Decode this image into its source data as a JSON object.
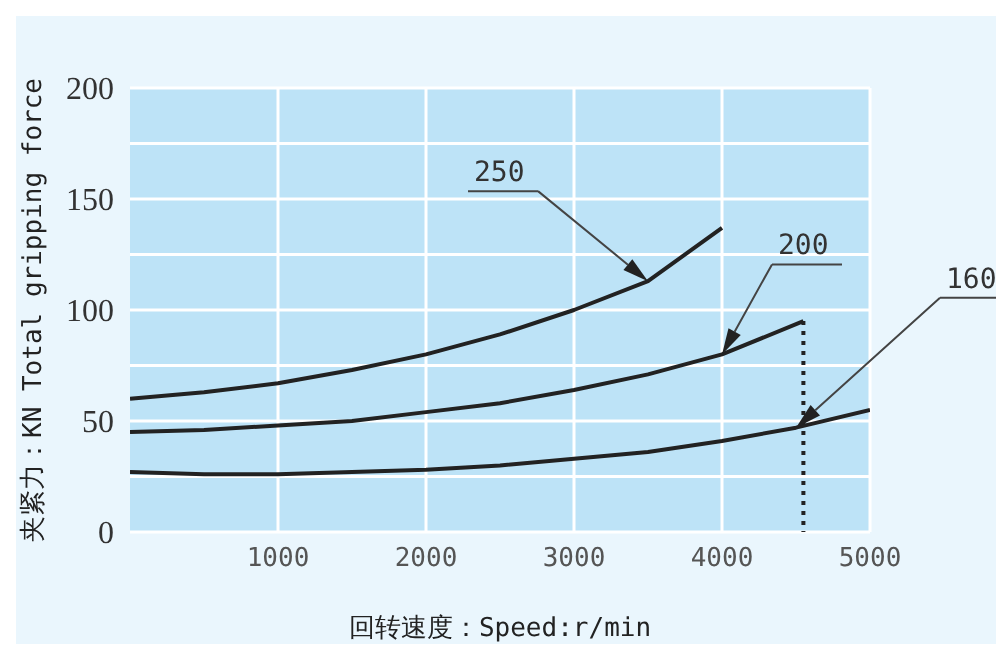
{
  "chart_data": {
    "type": "line",
    "xlabel": "回转速度：Speed:r/min",
    "ylabel": "夹紧力：KN Total gripping force",
    "xlim": [
      0,
      5000
    ],
    "xticks": [
      1000,
      2000,
      3000,
      4000,
      5000
    ],
    "ylim": [
      0,
      200
    ],
    "yticks": [
      0,
      {
        "value": 25,
        "label": null
      },
      50,
      {
        "value": 75,
        "label": null
      },
      100,
      {
        "value": 125,
        "label": null
      },
      150,
      {
        "value": 175,
        "label": null
      },
      200
    ],
    "grid": true,
    "series": [
      {
        "name": "250",
        "color": "#222222",
        "line_style": "solid",
        "x": [
          0,
          500,
          1000,
          1500,
          2000,
          2500,
          3000,
          3500,
          4000
        ],
        "values": [
          60,
          63,
          67,
          73,
          80,
          89,
          100,
          113,
          137
        ]
      },
      {
        "name": "200",
        "color": "#222222",
        "line_style": "solid",
        "x": [
          0,
          500,
          1000,
          1500,
          2000,
          2500,
          3000,
          3500,
          4000,
          4550
        ],
        "values": [
          45,
          46,
          48,
          50,
          54,
          58,
          64,
          71,
          80,
          95
        ]
      },
      {
        "name": "160",
        "color": "#222222",
        "line_style": "solid",
        "x": [
          0,
          500,
          1000,
          1500,
          2000,
          2500,
          3000,
          3500,
          4000,
          4500,
          5000
        ],
        "values": [
          27,
          26,
          26,
          27,
          28,
          30,
          33,
          36,
          41,
          47,
          55
        ]
      },
      {
        "color": "#222222",
        "line_style": "dotted",
        "x": [
          4550,
          4550
        ],
        "values": [
          95,
          0
        ]
      }
    ]
  }
}
